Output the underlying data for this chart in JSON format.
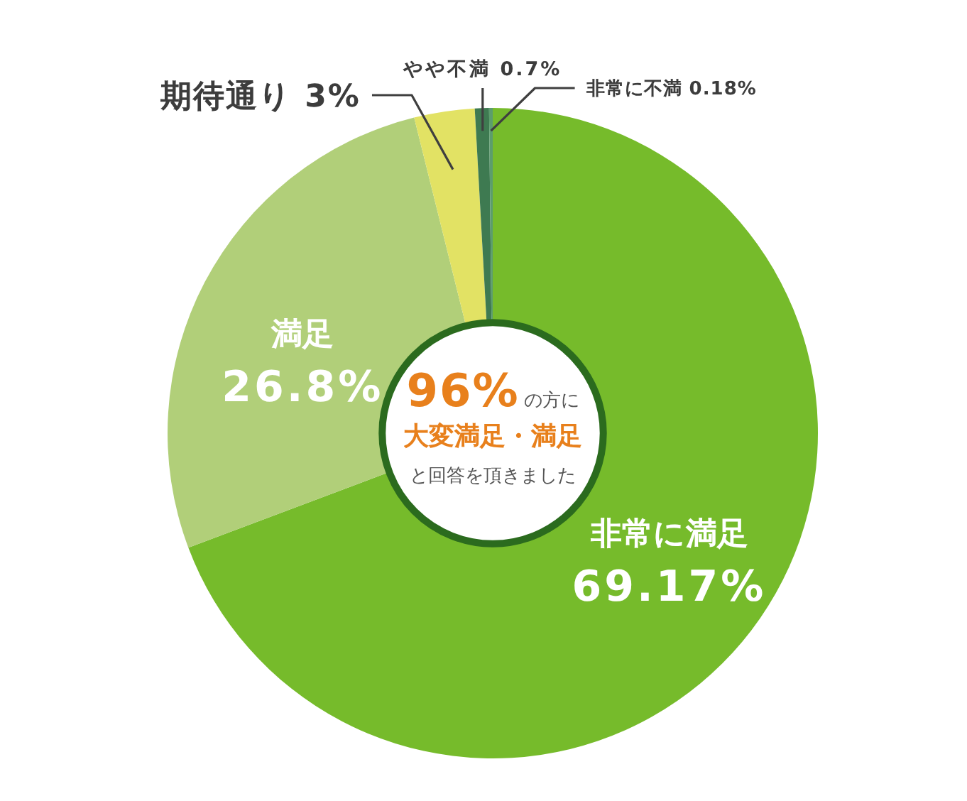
{
  "chart_data": {
    "type": "donut",
    "categories": [
      "非常に満足",
      "満足",
      "期待通り",
      "やや不満",
      "非常に不満"
    ],
    "values": [
      69.17,
      26.8,
      3,
      0.7,
      0.18
    ],
    "value_labels": [
      "69.17%",
      "26.8%",
      "3%",
      "0.7%",
      "0.18%"
    ],
    "colors": [
      "#76bb2b",
      "#b1cf79",
      "#e2e264",
      "#3e7a51",
      "#5c9d6d"
    ],
    "annotations": [
      "96%",
      "の方に",
      "大変満足・満足",
      "と回答を頂きました"
    ]
  }
}
